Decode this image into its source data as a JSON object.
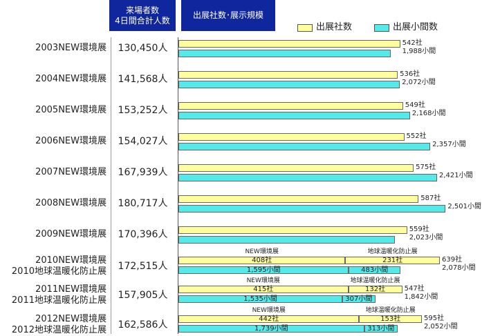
{
  "header": {
    "visitors_title": "来場者数\n4日間合計人数",
    "scale_title": "出展社数･展示規模"
  },
  "legend": {
    "exhibitors": "出展社数",
    "booths": "出展小間数"
  },
  "colors": {
    "header_bg": "#10269c",
    "exhibitors_bar": "#ffff9e",
    "booths_bar": "#54eaea"
  },
  "segment_labels": {
    "new": "NEW環境展",
    "global": "地球温暖化防止展"
  },
  "chart_data": {
    "type": "bar",
    "orientation": "horizontal",
    "series": [
      {
        "name": "出展社数",
        "unit": "社"
      },
      {
        "name": "出展小間数",
        "unit": "小間"
      }
    ],
    "rows": [
      {
        "label": "2003NEW環境展",
        "visitors": "130,450人",
        "exhibitors": 542,
        "exhibitors_label": "542社",
        "booths": 1988,
        "booths_label": "1,988小間"
      },
      {
        "label": "2004NEW環境展",
        "visitors": "141,568人",
        "exhibitors": 536,
        "exhibitors_label": "536社",
        "booths": 2072,
        "booths_label": "2,072小間"
      },
      {
        "label": "2005NEW環境展",
        "visitors": "153,252人",
        "exhibitors": 549,
        "exhibitors_label": "549社",
        "booths": 2168,
        "booths_label": "2,168小間"
      },
      {
        "label": "2006NEW環境展",
        "visitors": "154,027人",
        "exhibitors": 552,
        "exhibitors_label": "552社",
        "booths": 2357,
        "booths_label": "2,357小間"
      },
      {
        "label": "2007NEW環境展",
        "visitors": "167,939人",
        "exhibitors": 575,
        "exhibitors_label": "575社",
        "booths": 2421,
        "booths_label": "2,421小間"
      },
      {
        "label": "2008NEW環境展",
        "visitors": "180,717人",
        "exhibitors": 587,
        "exhibitors_label": "587社",
        "booths": 2501,
        "booths_label": "2,501小間"
      },
      {
        "label": "2009NEW環境展",
        "visitors": "170,396人",
        "exhibitors": 559,
        "exhibitors_label": "559社",
        "booths": 2023,
        "booths_label": "2,023小間"
      },
      {
        "label": "2010NEW環境展\n2010地球温暖化防止展",
        "visitors": "172,515人",
        "exhibitors": 639,
        "exhibitors_label": "639社",
        "booths": 2078,
        "booths_label": "2,078小間",
        "split": {
          "exhibitors_new": 408,
          "exhibitors_new_label": "408社",
          "exhibitors_global": 231,
          "exhibitors_global_label": "231社",
          "booths_new": 1595,
          "booths_new_label": "1,595小間",
          "booths_global": 483,
          "booths_global_label": "483小間"
        }
      },
      {
        "label": "2011NEW環境展\n2011地球温暖化防止展",
        "visitors": "157,905人",
        "exhibitors": 547,
        "exhibitors_label": "547社",
        "booths": 1842,
        "booths_label": "1,842小間",
        "split": {
          "exhibitors_new": 415,
          "exhibitors_new_label": "415社",
          "exhibitors_global": 132,
          "exhibitors_global_label": "132社",
          "booths_new": 1535,
          "booths_new_label": "1,535小間",
          "booths_global": 307,
          "booths_global_label": "307小間"
        }
      },
      {
        "label": "2012NEW環境展\n2012地球温暖化防止展",
        "visitors": "162,586人",
        "exhibitors": 595,
        "exhibitors_label": "595社",
        "booths": 2052,
        "booths_label": "2,052小間",
        "split": {
          "exhibitors_new": 442,
          "exhibitors_new_label": "442社",
          "exhibitors_global": 153,
          "exhibitors_global_label": "153社",
          "booths_new": 1739,
          "booths_new_label": "1,739小間",
          "booths_global": 313,
          "booths_global_label": "313小間"
        }
      }
    ]
  }
}
